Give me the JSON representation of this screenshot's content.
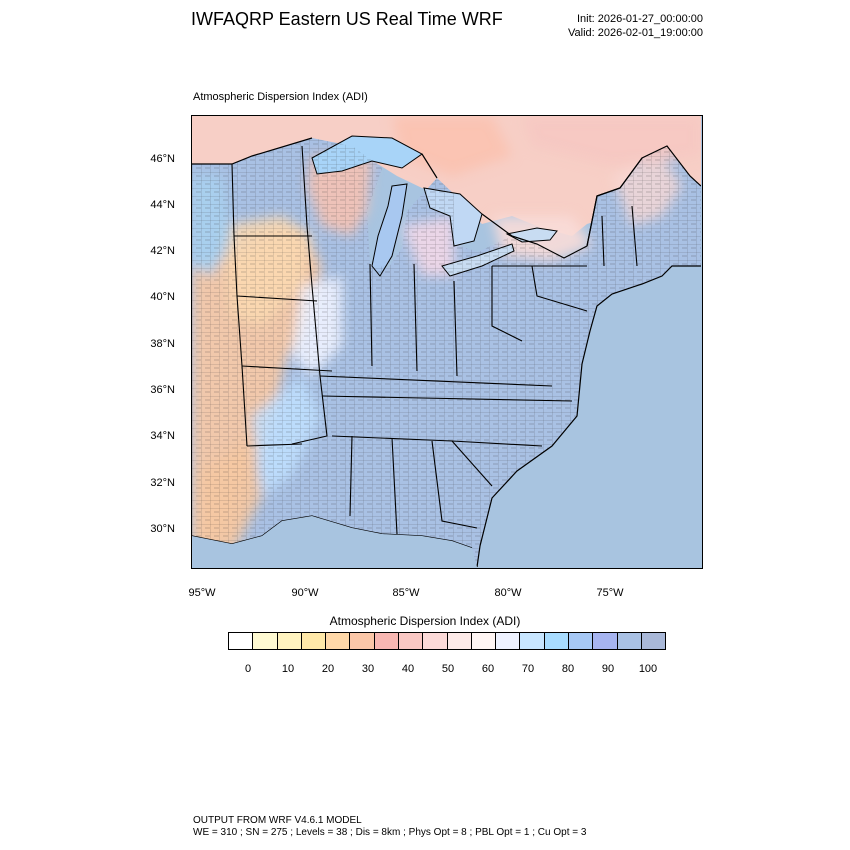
{
  "header": {
    "title": "IWFAQRP Eastern US Real Time WRF",
    "init": "Init: 2026-01-27_00:00:00",
    "valid": "Valid: 2026-02-01_19:00:00"
  },
  "field": {
    "title": "Atmospheric Dispersion Index   (ADI)"
  },
  "map": {
    "lat_labels": [
      "46°N",
      "44°N",
      "42°N",
      "40°N",
      "38°N",
      "36°N",
      "34°N",
      "32°N",
      "30°N"
    ],
    "lon_labels": [
      "95°W",
      "90°W",
      "85°W",
      "80°W",
      "75°W"
    ],
    "colors": {
      "ocean": "#a8c4e0",
      "land_high": "#a9c3e0",
      "outline": "#000000"
    }
  },
  "colorbar": {
    "title": "Atmospheric Dispersion Index  (ADI)",
    "colors": [
      "#ffffff",
      "#fffad2",
      "#fff3bf",
      "#ffe8a8",
      "#ffd8a8",
      "#fbc7a8",
      "#f8b7b2",
      "#fac8c4",
      "#fcdad8",
      "#fdeae8",
      "#fff6f4",
      "#eef2ff",
      "#c8e6ff",
      "#a8dcff",
      "#a6c8f5",
      "#a6b4f0",
      "#a9c1e4",
      "#a9b8d8"
    ],
    "ticks": [
      "0",
      "10",
      "20",
      "30",
      "40",
      "50",
      "60",
      "70",
      "80",
      "90",
      "100"
    ]
  },
  "footer": {
    "line1": "OUTPUT FROM WRF V4.6.1 MODEL",
    "line2": "WE = 310 ; SN = 275 ; Levels = 38 ; Dis = 8km ; Phys Opt = 8 ; PBL Opt = 1 ; Cu Opt = 3"
  }
}
